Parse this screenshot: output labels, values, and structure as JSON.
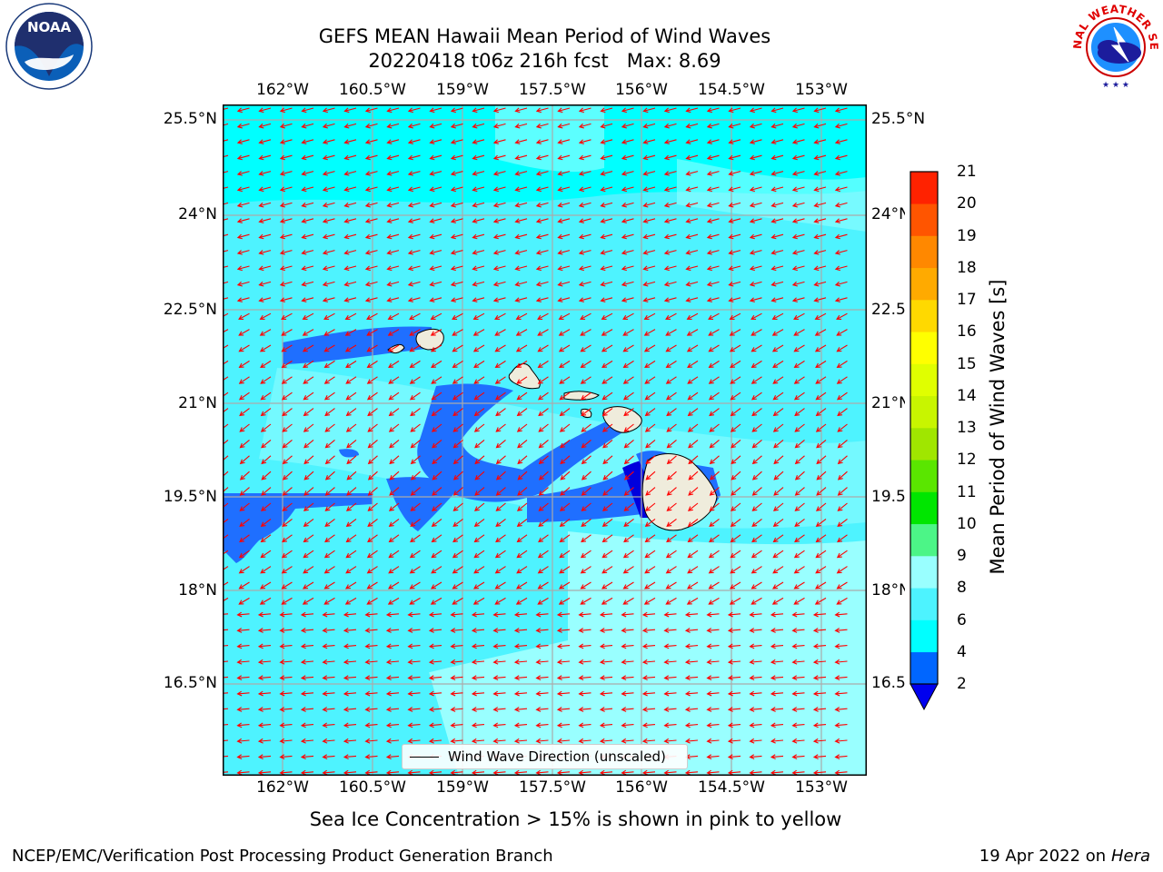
{
  "header": {
    "title_line1": "GEFS MEAN Hawaii Mean Period of Wind Waves",
    "title_line2": "20220418 t06z 216h fcst   Max: 8.69"
  },
  "map": {
    "lon_ticks": [
      "162°W",
      "160.5°W",
      "159°W",
      "157.5°W",
      "156°W",
      "154.5°W",
      "153°W"
    ],
    "lat_ticks": [
      "25.5°N",
      "24°N",
      "22.5°N",
      "21°N",
      "19.5°N",
      "18°N",
      "16.5°N"
    ],
    "legend_label": "Wind Wave Direction (unscaled)",
    "colors": {
      "ocean_base": "#00ffff",
      "shade_light": "#99ffff",
      "shade_mid": "#4ef3ff",
      "low_blue": "#1f6fff",
      "deep_blue": "#0000dd",
      "land": "#efecdc",
      "arrow": "#ff0000",
      "grid": "#aaaaaa"
    }
  },
  "colorbar": {
    "label": "Mean Period of Wind Waves [s]",
    "ticks": [
      "2",
      "4",
      "6",
      "8",
      "9",
      "10",
      "11",
      "12",
      "13",
      "14",
      "15",
      "16",
      "17",
      "18",
      "19",
      "20",
      "21"
    ],
    "colors": [
      "#0066ff",
      "#00ffff",
      "#4df3ff",
      "#99ffff",
      "#4cf587",
      "#00e600",
      "#5ae600",
      "#a0e600",
      "#c8f500",
      "#e0ff00",
      "#ffff00",
      "#ffd900",
      "#ffaa00",
      "#ff8800",
      "#ff5500",
      "#ff2200"
    ],
    "under_color": "#0000ee"
  },
  "caption": "Sea Ice Concentration > 15% is shown in pink to yellow",
  "footer": {
    "left": "NCEP/EMC/Verification Post Processing Product Generation Branch",
    "right_prefix": "19 Apr 2022 on ",
    "right_machine": "Hera"
  },
  "logos": {
    "noaa_text": "NOAA",
    "nws_text": "NATIONAL WEATHER SERVICE"
  }
}
